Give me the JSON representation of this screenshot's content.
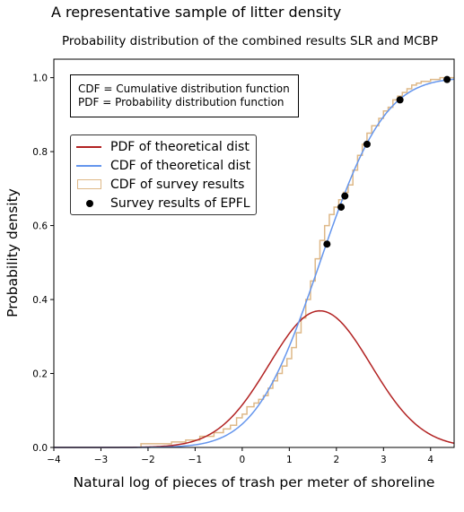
{
  "figure": {
    "suptitle": "A representative sample of litter density"
  },
  "chart_data": {
    "type": "line",
    "title": "Probability distribution of the combined results SLR and MCBP",
    "xlabel": "Natural log of pieces of trash per meter of shoreline",
    "ylabel": "Probability density",
    "xlim": [
      -4,
      4.5
    ],
    "ylim": [
      0,
      1.05
    ],
    "xticks": [
      -4,
      -3,
      -2,
      -1,
      0,
      1,
      2,
      3,
      4
    ],
    "xtick_labels": [
      "−4",
      "−3",
      "−2",
      "−1",
      "0",
      "1",
      "2",
      "3",
      "4"
    ],
    "yticks": [
      0.0,
      0.2,
      0.4,
      0.6,
      0.8,
      1.0
    ],
    "ytick_labels": [
      "0.0",
      "0.2",
      "0.4",
      "0.6",
      "0.8",
      "1.0"
    ],
    "grid": false,
    "legend_position": "upper-left",
    "theoretical": {
      "mean": 1.65,
      "sd": 1.08
    },
    "annotation_lines": [
      "CDF = Cumulative distribution function",
      "PDF = Probability distribution function"
    ],
    "series": [
      {
        "name": "PDF of theoretical dist",
        "kind": "line",
        "color": "#b22222"
      },
      {
        "name": "CDF of theoretical dist",
        "kind": "line",
        "color": "#6495ed"
      },
      {
        "name": "CDF of survey results",
        "kind": "step",
        "color": "#deb887",
        "x": [
          -2.15,
          -1.5,
          -1.2,
          -0.9,
          -0.6,
          -0.4,
          -0.25,
          -0.12,
          0.0,
          0.1,
          0.25,
          0.35,
          0.45,
          0.55,
          0.65,
          0.75,
          0.85,
          0.95,
          1.05,
          1.15,
          1.25,
          1.35,
          1.45,
          1.55,
          1.65,
          1.75,
          1.85,
          1.95,
          2.05,
          2.15,
          2.25,
          2.35,
          2.45,
          2.55,
          2.65,
          2.75,
          2.9,
          3.0,
          3.1,
          3.2,
          3.3,
          3.4,
          3.5,
          3.6,
          3.7,
          3.8,
          3.9,
          4.0,
          4.1,
          4.2,
          4.5
        ],
        "y": [
          0.01,
          0.015,
          0.02,
          0.03,
          0.04,
          0.05,
          0.06,
          0.08,
          0.09,
          0.11,
          0.12,
          0.13,
          0.14,
          0.16,
          0.18,
          0.2,
          0.22,
          0.24,
          0.27,
          0.31,
          0.35,
          0.4,
          0.45,
          0.51,
          0.56,
          0.6,
          0.63,
          0.65,
          0.67,
          0.69,
          0.71,
          0.75,
          0.79,
          0.82,
          0.85,
          0.87,
          0.89,
          0.91,
          0.92,
          0.94,
          0.95,
          0.96,
          0.97,
          0.98,
          0.985,
          0.99,
          0.99,
          0.995,
          0.995,
          1.0,
          1.0
        ]
      },
      {
        "name": "Survey results of EPFL",
        "kind": "scatter",
        "color": "#000000",
        "x": [
          1.8,
          2.1,
          2.18,
          2.65,
          3.35,
          4.35
        ],
        "y": [
          0.55,
          0.65,
          0.68,
          0.82,
          0.94,
          0.995
        ]
      }
    ]
  }
}
